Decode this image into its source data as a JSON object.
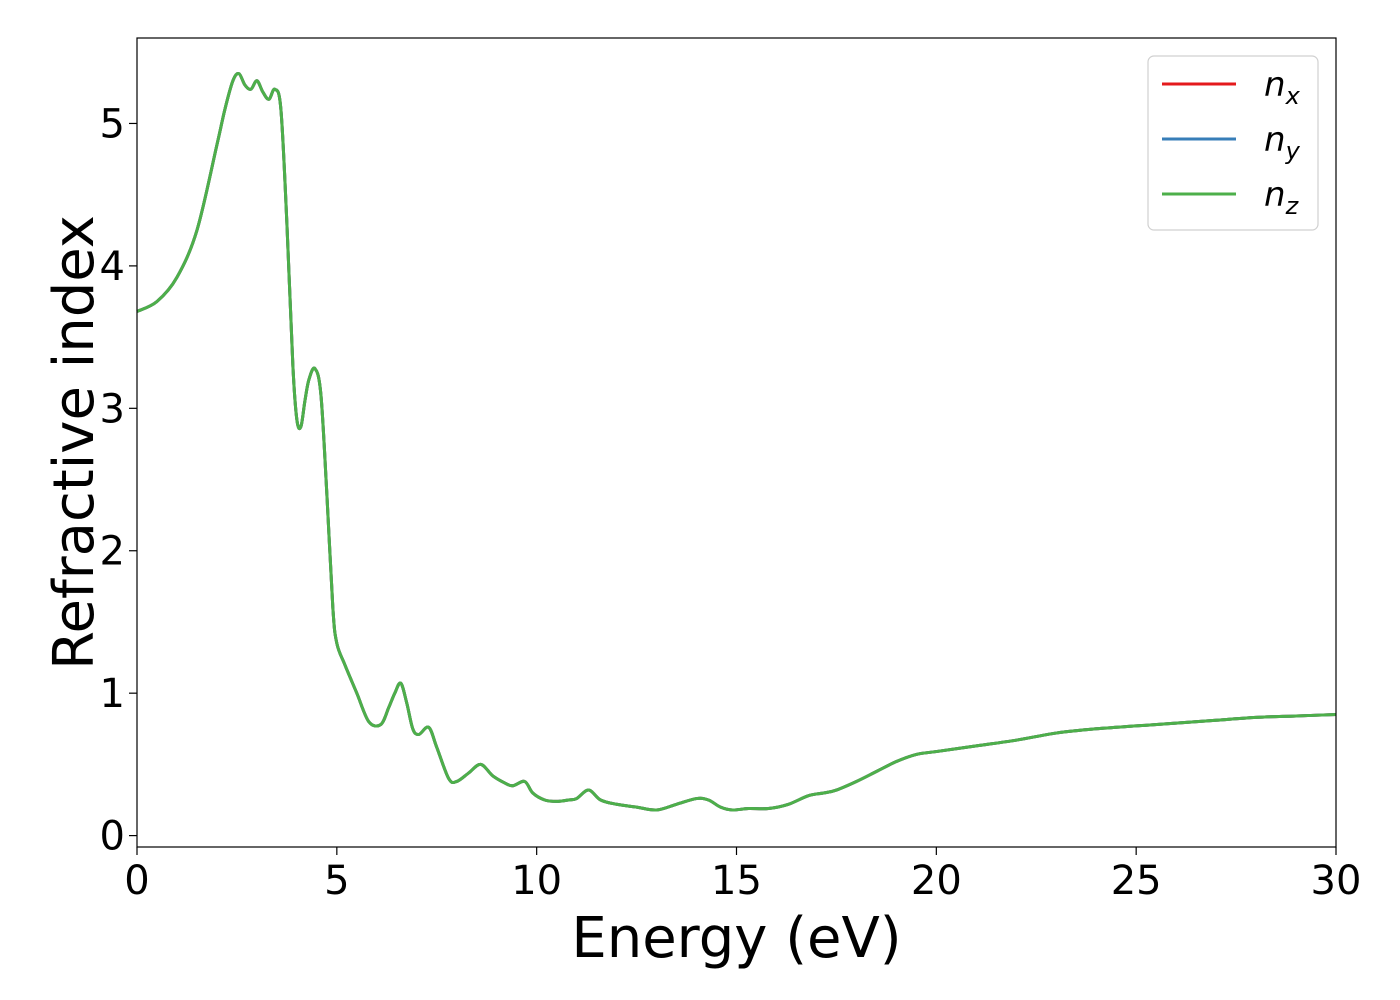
{
  "chart_data": {
    "type": "line",
    "title": "",
    "xlabel": "Energy (eV)",
    "ylabel": "Refractive index",
    "xlim": [
      0,
      30
    ],
    "ylim": [
      -0.08,
      5.6
    ],
    "xticks": [
      0,
      5,
      10,
      15,
      20,
      25,
      30
    ],
    "yticks": [
      0,
      1,
      2,
      3,
      4,
      5
    ],
    "grid": false,
    "legend_position": "top-right",
    "series": [
      {
        "name": "n",
        "subscript": "x",
        "color": "#e41a1c",
        "x": [
          0,
          0.5,
          1.0,
          1.5,
          2.0,
          2.2,
          2.4,
          2.55,
          2.7,
          2.85,
          3.0,
          3.15,
          3.3,
          3.45,
          3.6,
          3.75,
          3.9,
          4.0,
          4.1,
          4.2,
          4.3,
          4.45,
          4.6,
          4.75,
          4.9,
          5.0,
          5.2,
          5.5,
          5.8,
          6.1,
          6.3,
          6.45,
          6.6,
          6.75,
          6.9,
          7.05,
          7.3,
          7.5,
          7.8,
          8.0,
          8.3,
          8.6,
          8.9,
          9.2,
          9.4,
          9.7,
          9.9,
          10.2,
          10.5,
          10.8,
          11.0,
          11.3,
          11.6,
          12.0,
          12.5,
          13.0,
          13.5,
          14.0,
          14.3,
          14.6,
          14.9,
          15.3,
          15.8,
          16.3,
          16.8,
          17.2,
          17.5,
          18.0,
          18.5,
          19.0,
          19.5,
          20.0,
          21.0,
          22.0,
          23.0,
          24.0,
          25.0,
          26.0,
          27.0,
          28.0,
          29.0,
          30.0
        ],
        "y": [
          3.68,
          3.75,
          3.92,
          4.25,
          4.85,
          5.1,
          5.3,
          5.35,
          5.27,
          5.24,
          5.3,
          5.22,
          5.17,
          5.24,
          5.1,
          4.3,
          3.3,
          2.92,
          2.87,
          3.05,
          3.2,
          3.28,
          3.1,
          2.4,
          1.6,
          1.35,
          1.2,
          1.0,
          0.8,
          0.78,
          0.9,
          1.0,
          1.07,
          0.93,
          0.75,
          0.71,
          0.76,
          0.62,
          0.4,
          0.38,
          0.44,
          0.5,
          0.42,
          0.37,
          0.35,
          0.38,
          0.3,
          0.25,
          0.24,
          0.25,
          0.26,
          0.32,
          0.25,
          0.22,
          0.2,
          0.18,
          0.22,
          0.26,
          0.25,
          0.2,
          0.18,
          0.19,
          0.19,
          0.22,
          0.28,
          0.3,
          0.32,
          0.38,
          0.45,
          0.52,
          0.57,
          0.59,
          0.63,
          0.67,
          0.72,
          0.75,
          0.77,
          0.79,
          0.81,
          0.83,
          0.84,
          0.85
        ]
      },
      {
        "name": "n",
        "subscript": "y",
        "color": "#377eb8",
        "x": [
          0,
          0.5,
          1.0,
          1.5,
          2.0,
          2.2,
          2.4,
          2.55,
          2.7,
          2.85,
          3.0,
          3.15,
          3.3,
          3.45,
          3.6,
          3.75,
          3.9,
          4.0,
          4.1,
          4.2,
          4.3,
          4.45,
          4.6,
          4.75,
          4.9,
          5.0,
          5.2,
          5.5,
          5.8,
          6.1,
          6.3,
          6.45,
          6.6,
          6.75,
          6.9,
          7.05,
          7.3,
          7.5,
          7.8,
          8.0,
          8.3,
          8.6,
          8.9,
          9.2,
          9.4,
          9.7,
          9.9,
          10.2,
          10.5,
          10.8,
          11.0,
          11.3,
          11.6,
          12.0,
          12.5,
          13.0,
          13.5,
          14.0,
          14.3,
          14.6,
          14.9,
          15.3,
          15.8,
          16.3,
          16.8,
          17.2,
          17.5,
          18.0,
          18.5,
          19.0,
          19.5,
          20.0,
          21.0,
          22.0,
          23.0,
          24.0,
          25.0,
          26.0,
          27.0,
          28.0,
          29.0,
          30.0
        ],
        "y": [
          3.68,
          3.75,
          3.92,
          4.25,
          4.85,
          5.1,
          5.3,
          5.35,
          5.27,
          5.24,
          5.3,
          5.22,
          5.17,
          5.24,
          5.1,
          4.3,
          3.3,
          2.92,
          2.87,
          3.05,
          3.2,
          3.28,
          3.1,
          2.4,
          1.6,
          1.35,
          1.2,
          1.0,
          0.8,
          0.78,
          0.9,
          1.0,
          1.07,
          0.93,
          0.75,
          0.71,
          0.76,
          0.62,
          0.4,
          0.38,
          0.44,
          0.5,
          0.42,
          0.37,
          0.35,
          0.38,
          0.3,
          0.25,
          0.24,
          0.25,
          0.26,
          0.32,
          0.25,
          0.22,
          0.2,
          0.18,
          0.22,
          0.26,
          0.25,
          0.2,
          0.18,
          0.19,
          0.19,
          0.22,
          0.28,
          0.3,
          0.32,
          0.38,
          0.45,
          0.52,
          0.57,
          0.59,
          0.63,
          0.67,
          0.72,
          0.75,
          0.77,
          0.79,
          0.81,
          0.83,
          0.84,
          0.85
        ]
      },
      {
        "name": "n",
        "subscript": "z",
        "color": "#4daf4a",
        "x": [
          0,
          0.5,
          1.0,
          1.5,
          2.0,
          2.2,
          2.4,
          2.55,
          2.7,
          2.85,
          3.0,
          3.15,
          3.3,
          3.45,
          3.6,
          3.75,
          3.9,
          4.0,
          4.1,
          4.2,
          4.3,
          4.45,
          4.6,
          4.75,
          4.9,
          5.0,
          5.2,
          5.5,
          5.8,
          6.1,
          6.3,
          6.45,
          6.6,
          6.75,
          6.9,
          7.05,
          7.3,
          7.5,
          7.8,
          8.0,
          8.3,
          8.6,
          8.9,
          9.2,
          9.4,
          9.7,
          9.9,
          10.2,
          10.5,
          10.8,
          11.0,
          11.3,
          11.6,
          12.0,
          12.5,
          13.0,
          13.5,
          14.0,
          14.3,
          14.6,
          14.9,
          15.3,
          15.8,
          16.3,
          16.8,
          17.2,
          17.5,
          18.0,
          18.5,
          19.0,
          19.5,
          20.0,
          21.0,
          22.0,
          23.0,
          24.0,
          25.0,
          26.0,
          27.0,
          28.0,
          29.0,
          30.0
        ],
        "y": [
          3.68,
          3.75,
          3.92,
          4.25,
          4.85,
          5.1,
          5.3,
          5.35,
          5.27,
          5.24,
          5.3,
          5.22,
          5.17,
          5.24,
          5.1,
          4.3,
          3.3,
          2.92,
          2.87,
          3.05,
          3.2,
          3.28,
          3.1,
          2.4,
          1.6,
          1.35,
          1.2,
          1.0,
          0.8,
          0.78,
          0.9,
          1.0,
          1.07,
          0.93,
          0.75,
          0.71,
          0.76,
          0.62,
          0.4,
          0.38,
          0.44,
          0.5,
          0.42,
          0.37,
          0.35,
          0.38,
          0.3,
          0.25,
          0.24,
          0.25,
          0.26,
          0.32,
          0.25,
          0.22,
          0.2,
          0.18,
          0.22,
          0.26,
          0.25,
          0.2,
          0.18,
          0.19,
          0.19,
          0.22,
          0.28,
          0.3,
          0.32,
          0.38,
          0.45,
          0.52,
          0.57,
          0.59,
          0.63,
          0.67,
          0.72,
          0.75,
          0.77,
          0.79,
          0.81,
          0.83,
          0.84,
          0.85
        ]
      }
    ]
  }
}
